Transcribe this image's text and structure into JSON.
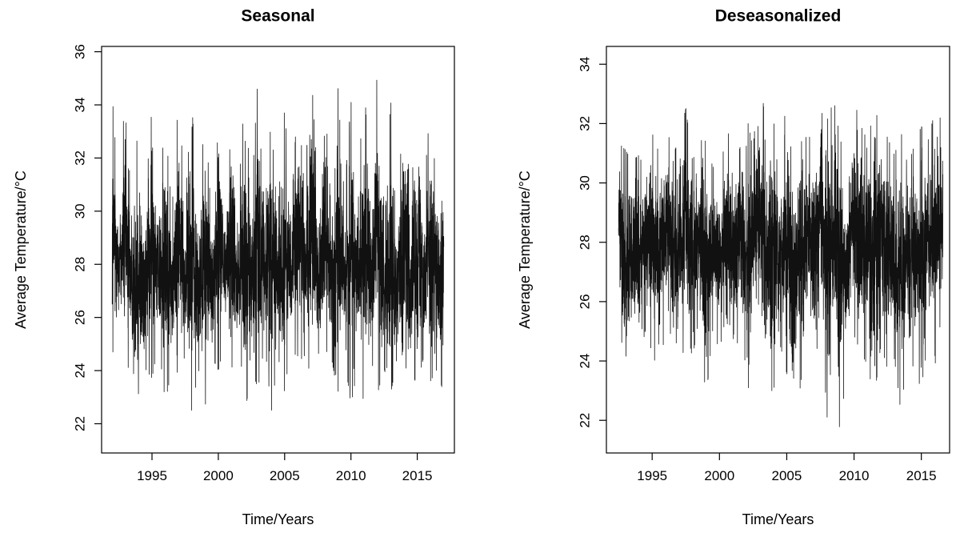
{
  "colors": {
    "line": "#111111",
    "axis": "#000000",
    "background": "#ffffff"
  },
  "chart_data": [
    {
      "type": "line",
      "title": "Seasonal",
      "xlabel": "Time/Years",
      "ylabel": "Average Temperature/°C",
      "xlim": [
        1991.2,
        2017.8
      ],
      "ylim": [
        20.9,
        36.2
      ],
      "xticks": [
        1995,
        2000,
        2005,
        2010,
        2015
      ],
      "yticks": [
        22,
        24,
        26,
        28,
        30,
        32,
        34,
        36
      ],
      "x_range": [
        1992.0,
        2017.0
      ],
      "legend": "none",
      "grid": false,
      "series": [
        {
          "x": [
            1992,
            1992.5,
            1993,
            1993.5,
            1994,
            1994.5,
            1995,
            1995.5,
            1996,
            1996.5,
            1997,
            1997.5,
            1998,
            1998.5,
            1999,
            1999.5,
            2000,
            2000.5,
            2001,
            2001.5,
            2002,
            2002.5,
            2003,
            2003.5,
            2004,
            2004.5,
            2005,
            2005.5,
            2006,
            2006.5,
            2007,
            2007.5,
            2008,
            2008.5,
            2009,
            2009.5,
            2010,
            2010.5,
            2011,
            2011.5,
            2012,
            2012.5,
            2013,
            2013.5,
            2014,
            2014.5,
            2015,
            2015.5,
            2016,
            2016.5,
            2017
          ],
          "max": [
            34.5,
            30.5,
            34.8,
            29.5,
            34.0,
            30.0,
            34.8,
            30.5,
            33.6,
            30.0,
            34.5,
            30.5,
            34.2,
            30.0,
            34.0,
            29.6,
            34.4,
            30.5,
            34.2,
            30.6,
            34.6,
            30.5,
            35.4,
            30.8,
            35.2,
            30.2,
            34.0,
            30.0,
            34.6,
            30.8,
            35.5,
            31.0,
            34.8,
            30.2,
            34.9,
            30.6,
            34.3,
            30.8,
            35.0,
            30.4,
            35.6,
            30.2,
            34.3,
            30.0,
            34.5,
            30.4,
            34.5,
            30.8,
            34.3,
            30.4,
            32.2
          ],
          "min": [
            24.5,
            25.5,
            23.7,
            24.5,
            21.4,
            24.0,
            23.6,
            25.0,
            22.7,
            24.0,
            23.8,
            24.5,
            22.3,
            24.0,
            22.5,
            24.5,
            23.9,
            25.0,
            24.0,
            24.5,
            22.2,
            24.0,
            23.2,
            25.0,
            22.3,
            24.5,
            23.1,
            25.0,
            24.2,
            24.5,
            23.7,
            24.0,
            23.1,
            24.5,
            23.0,
            24.5,
            22.6,
            24.0,
            22.6,
            24.5,
            23.0,
            24.0,
            23.0,
            24.5,
            22.5,
            24.0,
            23.3,
            24.5,
            23.5,
            24.0,
            23.0
          ]
        }
      ]
    },
    {
      "type": "line",
      "title": "Deseasonalized",
      "xlabel": "Time/Years",
      "ylabel": "Average Temperature/°C",
      "xlim": [
        1991.6,
        2017.1
      ],
      "ylim": [
        20.9,
        34.6
      ],
      "xticks": [
        1995,
        2000,
        2005,
        2010,
        2015
      ],
      "yticks": [
        22,
        24,
        26,
        28,
        30,
        32,
        34
      ],
      "x_range": [
        1992.5,
        2016.6
      ],
      "legend": "none",
      "grid": false,
      "series": [
        {
          "x": [
            1992.5,
            1993,
            1993.5,
            1994,
            1994.5,
            1995,
            1995.5,
            1996,
            1996.5,
            1997,
            1997.5,
            1998,
            1998.5,
            1999,
            1999.5,
            2000,
            2000.5,
            2001,
            2001.5,
            2002,
            2002.5,
            2003,
            2003.5,
            2004,
            2004.5,
            2005,
            2005.5,
            2006,
            2006.5,
            2007,
            2007.5,
            2008,
            2008.5,
            2009,
            2009.5,
            2010,
            2010.5,
            2011,
            2011.5,
            2012,
            2012.5,
            2013,
            2013.5,
            2014,
            2014.5,
            2015,
            2015.5,
            2016,
            2016.5
          ],
          "max": [
            31.4,
            31.2,
            30.8,
            31.0,
            30.5,
            32.2,
            31.0,
            32.2,
            31.0,
            31.5,
            32.6,
            30.8,
            31.5,
            31.5,
            30.6,
            30.5,
            31.6,
            32.0,
            31.2,
            32.4,
            31.2,
            34.1,
            31.5,
            32.2,
            31.0,
            32.9,
            31.2,
            32.3,
            31.5,
            31.8,
            32.5,
            32.2,
            32.9,
            31.5,
            31.2,
            32.9,
            32.0,
            31.5,
            32.6,
            32.0,
            31.6,
            31.0,
            31.8,
            30.6,
            31.4,
            32.0,
            31.5,
            32.5,
            32.2
          ],
          "min": [
            26.0,
            23.0,
            24.5,
            23.8,
            25.0,
            24.2,
            23.5,
            25.0,
            24.8,
            22.7,
            25.2,
            24.0,
            25.5,
            22.6,
            25.0,
            24.3,
            25.5,
            23.6,
            25.0,
            22.0,
            25.2,
            24.5,
            23.3,
            22.8,
            24.5,
            23.5,
            22.5,
            23.0,
            25.0,
            23.2,
            25.5,
            22.0,
            24.0,
            21.2,
            24.5,
            24.8,
            24.2,
            23.8,
            22.6,
            24.5,
            23.6,
            24.0,
            22.1,
            24.5,
            23.5,
            23.0,
            24.6,
            23.7,
            25.5
          ]
        }
      ]
    }
  ]
}
